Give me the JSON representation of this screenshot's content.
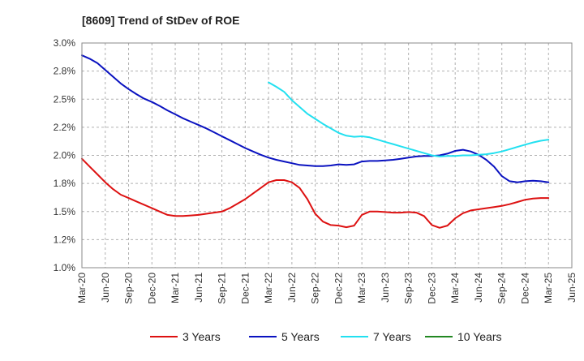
{
  "chart_data": {
    "type": "line",
    "title": "[8609]  Trend of StDev of ROE",
    "xlabel": "",
    "ylabel": "",
    "ylim": [
      1.0,
      3.0
    ],
    "y_ticks": [
      "1.0%",
      "1.2%",
      "1.5%",
      "1.8%",
      "2.0%",
      "2.2%",
      "2.5%",
      "2.8%",
      "3.0%"
    ],
    "x_ticks": [
      "Mar-20",
      "Jun-20",
      "Sep-20",
      "Dec-20",
      "Mar-21",
      "Jun-21",
      "Sep-21",
      "Dec-21",
      "Mar-22",
      "Jun-22",
      "Sep-22",
      "Dec-22",
      "Mar-23",
      "Jun-23",
      "Sep-23",
      "Dec-23",
      "Mar-24",
      "Jun-24",
      "Sep-24",
      "Dec-24",
      "Mar-25",
      "Jun-25"
    ],
    "grid": true,
    "legend_position": "bottom",
    "series": [
      {
        "name": "3 Years",
        "color": "#dd1111",
        "points": [
          [
            "Mar-20",
            1.97
          ],
          [
            "Apr-20",
            1.9
          ],
          [
            "May-20",
            1.83
          ],
          [
            "Jun-20",
            1.76
          ],
          [
            "Jul-20",
            1.7
          ],
          [
            "Aug-20",
            1.65
          ],
          [
            "Sep-20",
            1.62
          ],
          [
            "Oct-20",
            1.59
          ],
          [
            "Nov-20",
            1.56
          ],
          [
            "Dec-20",
            1.53
          ],
          [
            "Jan-21",
            1.5
          ],
          [
            "Feb-21",
            1.47
          ],
          [
            "Mar-21",
            1.46
          ],
          [
            "Apr-21",
            1.46
          ],
          [
            "May-21",
            1.465
          ],
          [
            "Jun-21",
            1.47
          ],
          [
            "Jul-21",
            1.48
          ],
          [
            "Aug-21",
            1.49
          ],
          [
            "Sep-21",
            1.5
          ],
          [
            "Oct-21",
            1.53
          ],
          [
            "Nov-21",
            1.57
          ],
          [
            "Dec-21",
            1.61
          ],
          [
            "Jan-22",
            1.66
          ],
          [
            "Feb-22",
            1.71
          ],
          [
            "Mar-22",
            1.76
          ],
          [
            "Apr-22",
            1.78
          ],
          [
            "May-22",
            1.78
          ],
          [
            "Jun-22",
            1.76
          ],
          [
            "Jul-22",
            1.71
          ],
          [
            "Aug-22",
            1.61
          ],
          [
            "Sep-22",
            1.48
          ],
          [
            "Oct-22",
            1.41
          ],
          [
            "Nov-22",
            1.38
          ],
          [
            "Dec-22",
            1.375
          ],
          [
            "Jan-23",
            1.36
          ],
          [
            "Feb-23",
            1.375
          ],
          [
            "Mar-23",
            1.47
          ],
          [
            "Apr-23",
            1.5
          ],
          [
            "May-23",
            1.5
          ],
          [
            "Jun-23",
            1.495
          ],
          [
            "Jul-23",
            1.49
          ],
          [
            "Aug-23",
            1.49
          ],
          [
            "Sep-23",
            1.495
          ],
          [
            "Oct-23",
            1.49
          ],
          [
            "Nov-23",
            1.46
          ],
          [
            "Dec-23",
            1.38
          ],
          [
            "Jan-24",
            1.355
          ],
          [
            "Feb-24",
            1.375
          ],
          [
            "Mar-24",
            1.44
          ],
          [
            "Apr-24",
            1.485
          ],
          [
            "May-24",
            1.51
          ],
          [
            "Jun-24",
            1.52
          ],
          [
            "Jul-24",
            1.53
          ],
          [
            "Aug-24",
            1.54
          ],
          [
            "Sep-24",
            1.55
          ],
          [
            "Oct-24",
            1.565
          ],
          [
            "Nov-24",
            1.585
          ],
          [
            "Dec-24",
            1.605
          ],
          [
            "Jan-25",
            1.615
          ],
          [
            "Feb-25",
            1.62
          ],
          [
            "Mar-25",
            1.62
          ]
        ]
      },
      {
        "name": "5 Years",
        "color": "#0a12c0",
        "points": [
          [
            "Mar-20",
            2.89
          ],
          [
            "Apr-20",
            2.86
          ],
          [
            "May-20",
            2.82
          ],
          [
            "Jun-20",
            2.76
          ],
          [
            "Jul-20",
            2.7
          ],
          [
            "Aug-20",
            2.64
          ],
          [
            "Sep-20",
            2.59
          ],
          [
            "Oct-20",
            2.545
          ],
          [
            "Nov-20",
            2.505
          ],
          [
            "Dec-20",
            2.475
          ],
          [
            "Jan-21",
            2.44
          ],
          [
            "Feb-21",
            2.4
          ],
          [
            "Mar-21",
            2.365
          ],
          [
            "Apr-21",
            2.33
          ],
          [
            "May-21",
            2.3
          ],
          [
            "Jun-21",
            2.27
          ],
          [
            "Jul-21",
            2.24
          ],
          [
            "Aug-21",
            2.205
          ],
          [
            "Sep-21",
            2.17
          ],
          [
            "Oct-21",
            2.135
          ],
          [
            "Nov-21",
            2.1
          ],
          [
            "Dec-21",
            2.065
          ],
          [
            "Jan-22",
            2.035
          ],
          [
            "Feb-22",
            2.005
          ],
          [
            "Mar-22",
            1.98
          ],
          [
            "Apr-22",
            1.96
          ],
          [
            "May-22",
            1.945
          ],
          [
            "Jun-22",
            1.93
          ],
          [
            "Jul-22",
            1.915
          ],
          [
            "Aug-22",
            1.91
          ],
          [
            "Sep-22",
            1.905
          ],
          [
            "Oct-22",
            1.905
          ],
          [
            "Nov-22",
            1.91
          ],
          [
            "Dec-22",
            1.92
          ],
          [
            "Jan-23",
            1.915
          ],
          [
            "Feb-23",
            1.92
          ],
          [
            "Mar-23",
            1.945
          ],
          [
            "Apr-23",
            1.95
          ],
          [
            "May-23",
            1.95
          ],
          [
            "Jun-23",
            1.955
          ],
          [
            "Jul-23",
            1.96
          ],
          [
            "Aug-23",
            1.97
          ],
          [
            "Sep-23",
            1.98
          ],
          [
            "Oct-23",
            1.99
          ],
          [
            "Nov-23",
            1.995
          ],
          [
            "Dec-23",
            1.995
          ],
          [
            "Jan-24",
            2.0
          ],
          [
            "Feb-24",
            2.015
          ],
          [
            "Mar-24",
            2.04
          ],
          [
            "Apr-24",
            2.05
          ],
          [
            "May-24",
            2.035
          ],
          [
            "Jun-24",
            2.005
          ],
          [
            "Jul-24",
            1.96
          ],
          [
            "Aug-24",
            1.9
          ],
          [
            "Sep-24",
            1.815
          ],
          [
            "Oct-24",
            1.77
          ],
          [
            "Nov-24",
            1.76
          ],
          [
            "Dec-24",
            1.77
          ],
          [
            "Jan-25",
            1.775
          ],
          [
            "Feb-25",
            1.77
          ],
          [
            "Mar-25",
            1.76
          ]
        ]
      },
      {
        "name": "7 Years",
        "color": "#22e0f0",
        "points": [
          [
            "Mar-22",
            2.65
          ],
          [
            "Apr-22",
            2.61
          ],
          [
            "May-22",
            2.565
          ],
          [
            "Jun-22",
            2.49
          ],
          [
            "Jul-22",
            2.43
          ],
          [
            "Aug-22",
            2.37
          ],
          [
            "Sep-22",
            2.325
          ],
          [
            "Oct-22",
            2.28
          ],
          [
            "Nov-22",
            2.24
          ],
          [
            "Dec-22",
            2.2
          ],
          [
            "Jan-23",
            2.175
          ],
          [
            "Feb-23",
            2.165
          ],
          [
            "Mar-23",
            2.17
          ],
          [
            "Apr-23",
            2.16
          ],
          [
            "May-23",
            2.14
          ],
          [
            "Jun-23",
            2.12
          ],
          [
            "Jul-23",
            2.1
          ],
          [
            "Aug-23",
            2.08
          ],
          [
            "Sep-23",
            2.06
          ],
          [
            "Oct-23",
            2.04
          ],
          [
            "Nov-23",
            2.02
          ],
          [
            "Dec-23",
            2.0
          ],
          [
            "Jan-24",
            1.99
          ],
          [
            "Feb-24",
            1.995
          ],
          [
            "Mar-24",
            1.995
          ],
          [
            "Apr-24",
            2.0
          ],
          [
            "May-24",
            2.0
          ],
          [
            "Jun-24",
            2.005
          ],
          [
            "Jul-24",
            2.01
          ],
          [
            "Aug-24",
            2.02
          ],
          [
            "Sep-24",
            2.035
          ],
          [
            "Oct-24",
            2.055
          ],
          [
            "Nov-24",
            2.075
          ],
          [
            "Dec-24",
            2.095
          ],
          [
            "Jan-25",
            2.115
          ],
          [
            "Feb-25",
            2.13
          ],
          [
            "Mar-25",
            2.14
          ]
        ]
      },
      {
        "name": "10 Years",
        "color": "#228822",
        "points": []
      }
    ]
  }
}
